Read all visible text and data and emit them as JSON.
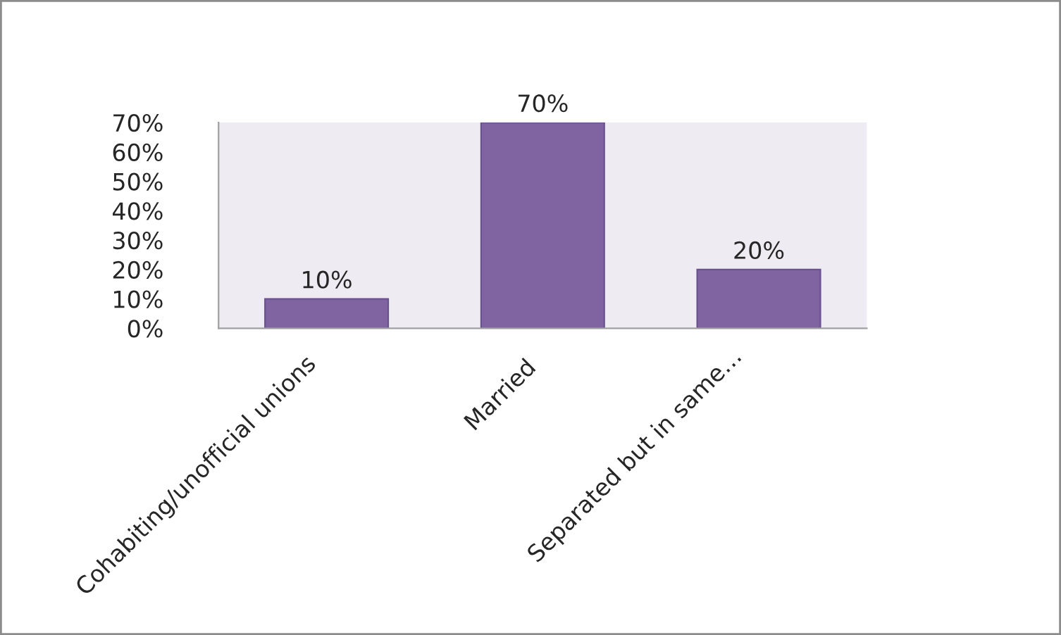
{
  "chart_data": {
    "type": "bar",
    "categories": [
      "Cohabiting/unofficial unions",
      "Married",
      "Separated but in same…"
    ],
    "values": [
      10,
      70,
      20
    ],
    "color": "#8064a2",
    "value_labels": [
      "10%",
      "70%",
      "20%"
    ],
    "ylim": [
      0,
      70
    ],
    "yticks": [
      {
        "value": 0,
        "label": "0%"
      },
      {
        "value": 10,
        "label": "10%"
      },
      {
        "value": 20,
        "label": "20%"
      },
      {
        "value": 30,
        "label": "30%"
      },
      {
        "value": 40,
        "label": "40%"
      },
      {
        "value": 50,
        "label": "50%"
      },
      {
        "value": 60,
        "label": "60%"
      },
      {
        "value": 70,
        "label": "70%"
      }
    ]
  }
}
